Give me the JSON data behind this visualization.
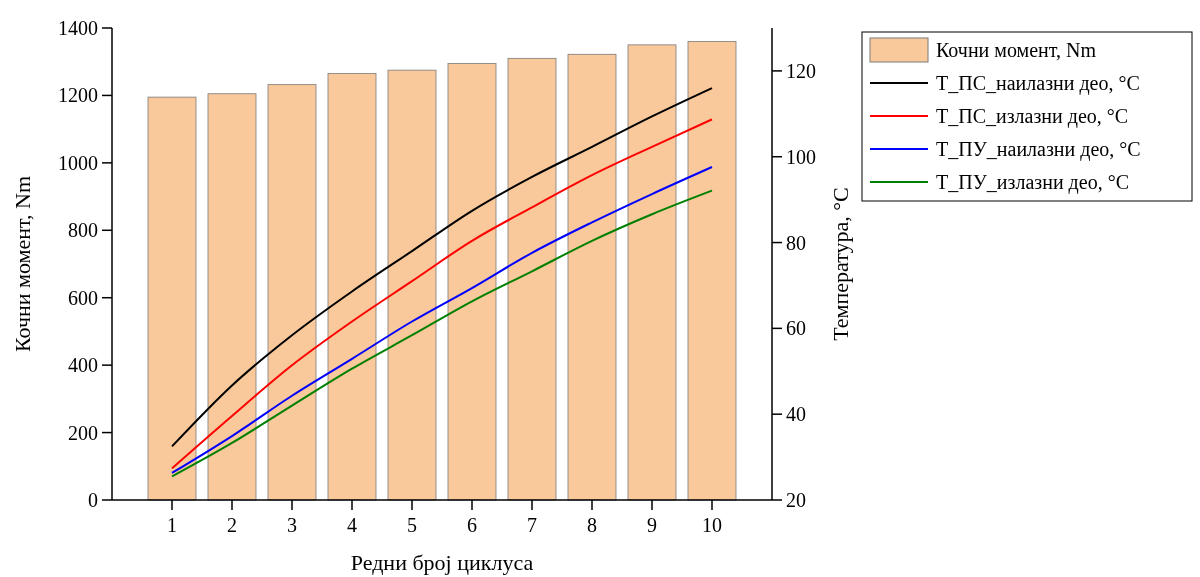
{
  "chart_data": {
    "type": "bar",
    "xlabel": "Редни број циклуса",
    "ylabel": "Кочни момент, Nm",
    "y2label": "Температура, °C",
    "x": [
      1,
      2,
      3,
      4,
      5,
      6,
      7,
      8,
      9,
      10
    ],
    "xlim": [
      0,
      11
    ],
    "xticks": [
      1,
      2,
      3,
      4,
      5,
      6,
      7,
      8,
      9,
      10
    ],
    "ylim": [
      0,
      1400
    ],
    "yticks": [
      0,
      200,
      400,
      600,
      800,
      1000,
      1200,
      1400
    ],
    "y2lim": [
      20,
      130
    ],
    "y2ticks": [
      20,
      40,
      60,
      80,
      100,
      120
    ],
    "legend": "right",
    "grid": false,
    "series": [
      {
        "name": "Кочни момент, Nm",
        "color": "#f9c89b",
        "values": [
          1195,
          1205,
          1232,
          1265,
          1275,
          1295,
          1310,
          1322,
          1350,
          1360
        ]
      },
      {
        "name": "T_ПС_наилазни део, °C",
        "type": "line",
        "axis": "y2",
        "color": "#000000",
        "values": [
          32.5,
          46.7,
          58.4,
          68.6,
          78,
          87.4,
          95.3,
          102.3,
          109.4,
          116
        ]
      },
      {
        "name": "T_ПС_излазни део, °C",
        "type": "line",
        "axis": "y2",
        "color": "#ff0000",
        "values": [
          27.4,
          39.6,
          51.4,
          61.6,
          71,
          80.4,
          88.2,
          95.7,
          102.3,
          108.7
        ]
      },
      {
        "name": "T_ПУ_наилазни део, °C",
        "type": "line",
        "axis": "y2",
        "color": "#0000ff",
        "values": [
          26.3,
          34.9,
          44.3,
          52.9,
          61.6,
          69.4,
          77.6,
          84.7,
          91.3,
          97.6
        ]
      },
      {
        "name": "T_ПУ_излазни део, °C",
        "type": "line",
        "axis": "y2",
        "color": "#008000",
        "values": [
          25.5,
          33.3,
          42,
          50.6,
          58.4,
          66.3,
          73.3,
          80.4,
          86.6,
          92.1
        ]
      }
    ]
  }
}
